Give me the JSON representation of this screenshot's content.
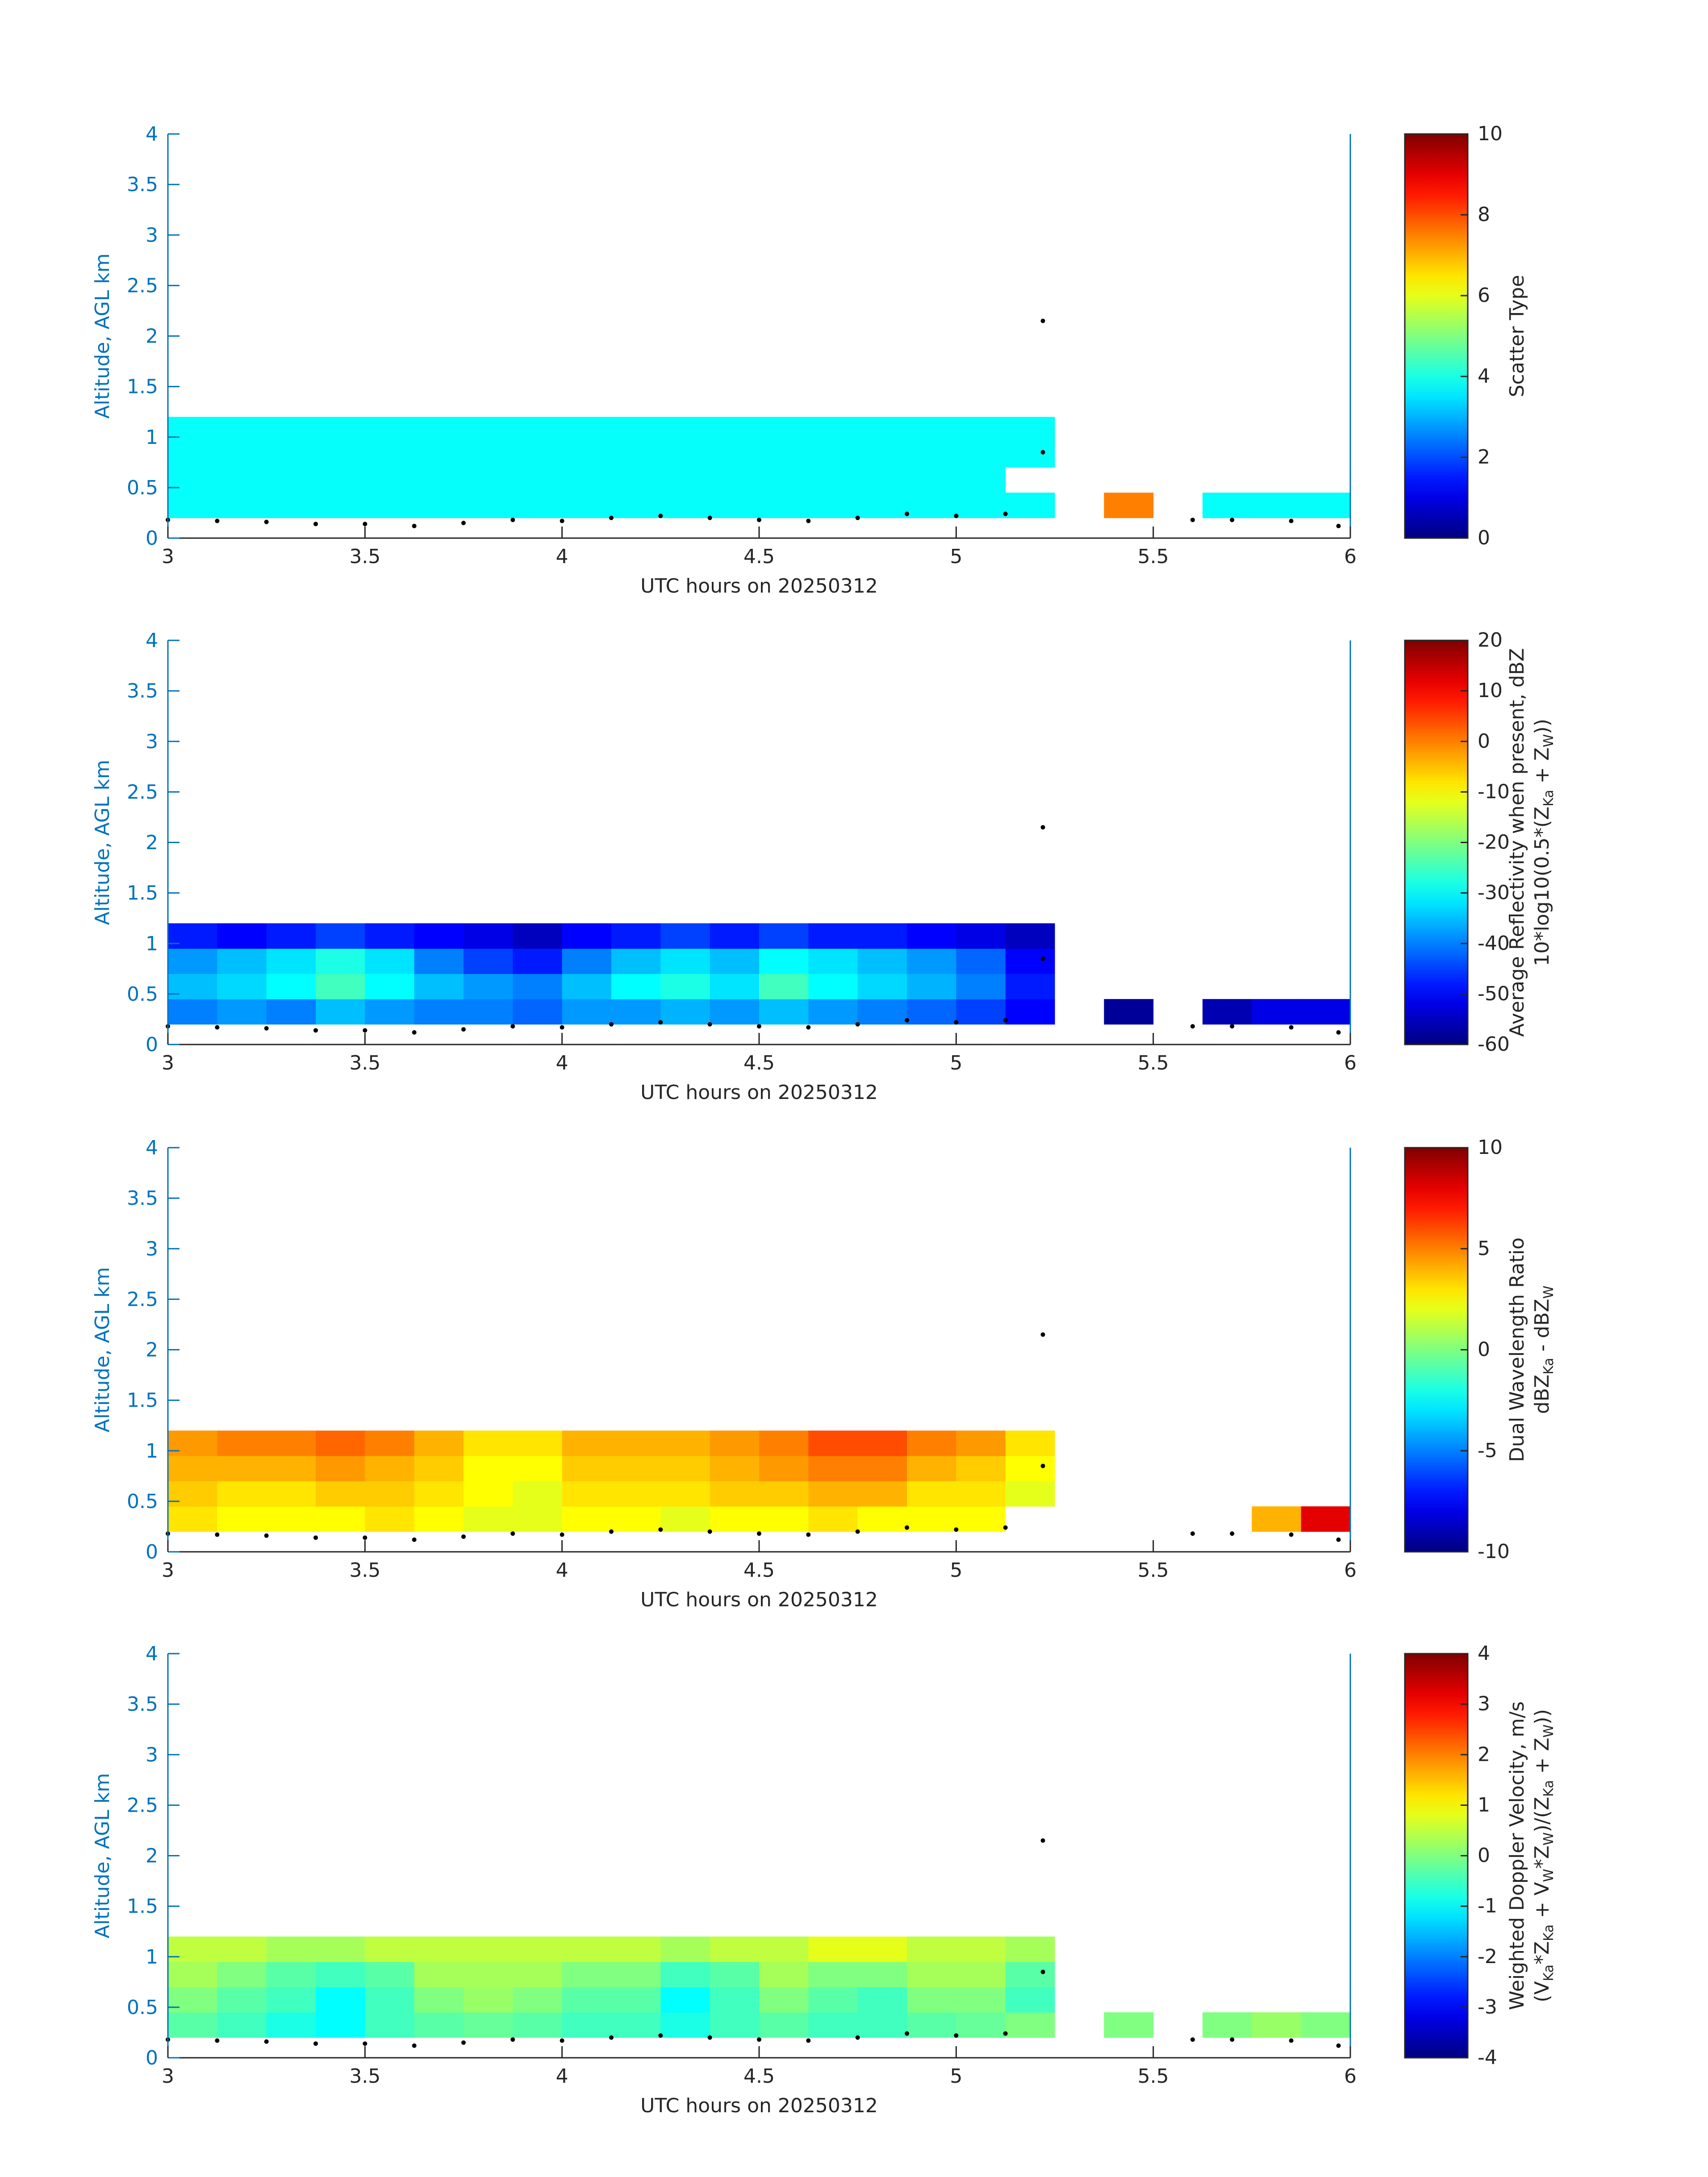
{
  "chart_data": [
    {
      "type": "heatmap",
      "xlabel": "UTC hours on 20250312",
      "ylabel": "Altitude, AGL km",
      "xlim": [
        3,
        6
      ],
      "xticks": [
        3,
        3.5,
        4,
        4.5,
        5,
        5.5,
        6
      ],
      "ylim": [
        0,
        4
      ],
      "yticks": [
        0,
        0.5,
        1,
        1.5,
        2,
        2.5,
        3,
        3.5,
        4
      ],
      "xbins": [
        3,
        3.125,
        3.25,
        3.375,
        3.5,
        3.625,
        3.75,
        3.875,
        4,
        4.125,
        4.25,
        4.375,
        4.5,
        4.625,
        4.75,
        4.875,
        5,
        5.125,
        5.25,
        5.375,
        5.5,
        5.625,
        5.75,
        5.875,
        6
      ],
      "ybins": [
        0.2,
        0.45,
        0.7,
        0.95,
        1.2
      ],
      "values": [
        [
          3.8,
          3.8,
          3.8,
          3.8,
          3.8,
          3.8,
          3.8,
          3.8,
          3.8,
          3.8,
          3.8,
          3.8,
          3.8,
          3.8,
          3.8,
          3.8,
          3.8,
          3.8,
          null,
          7.5,
          null,
          3.8,
          3.8,
          3.8
        ],
        [
          3.8,
          3.8,
          3.8,
          3.8,
          3.8,
          3.8,
          3.8,
          3.8,
          3.8,
          3.8,
          3.8,
          3.8,
          3.8,
          3.8,
          3.8,
          3.8,
          3.8,
          null,
          null,
          null,
          null,
          null,
          null,
          null
        ],
        [
          3.8,
          3.8,
          3.8,
          3.8,
          3.8,
          3.8,
          3.8,
          3.8,
          3.8,
          3.8,
          3.8,
          3.8,
          3.8,
          3.8,
          3.8,
          3.8,
          3.8,
          3.8,
          null,
          null,
          null,
          null,
          null,
          null
        ],
        [
          3.8,
          3.8,
          3.8,
          3.8,
          3.8,
          3.8,
          3.8,
          3.8,
          3.8,
          3.8,
          3.8,
          3.8,
          3.8,
          3.8,
          3.8,
          3.8,
          3.8,
          3.8,
          null,
          null,
          null,
          null,
          null,
          null
        ]
      ],
      "colormap": "jet",
      "clim": [
        0,
        10
      ],
      "cticks": [
        0,
        2,
        4,
        6,
        8,
        10
      ],
      "colorbar_label": [
        [
          {
            "text": "Scatter Type"
          }
        ]
      ],
      "points": {
        "color": "#000000",
        "x": [
          3,
          3.125,
          3.25,
          3.375,
          3.5,
          3.625,
          3.75,
          3.875,
          4,
          4.125,
          4.25,
          4.375,
          4.5,
          4.625,
          4.75,
          4.875,
          5,
          5.125,
          5.22,
          5.22,
          5.6,
          5.7,
          5.85,
          5.97
        ],
        "y": [
          0.18,
          0.17,
          0.16,
          0.14,
          0.14,
          0.12,
          0.15,
          0.18,
          0.17,
          0.2,
          0.22,
          0.2,
          0.18,
          0.17,
          0.2,
          0.24,
          0.22,
          0.24,
          0.85,
          2.15,
          0.18,
          0.18,
          0.17,
          0.12
        ]
      }
    },
    {
      "type": "heatmap",
      "xlabel": "UTC hours on 20250312",
      "ylabel": "Altitude, AGL km",
      "xlim": [
        3,
        6
      ],
      "xticks": [
        3,
        3.5,
        4,
        4.5,
        5,
        5.5,
        6
      ],
      "ylim": [
        0,
        4
      ],
      "yticks": [
        0,
        0.5,
        1,
        1.5,
        2,
        2.5,
        3,
        3.5,
        4
      ],
      "xbins": [
        3,
        3.125,
        3.25,
        3.375,
        3.5,
        3.625,
        3.75,
        3.875,
        4,
        4.125,
        4.25,
        4.375,
        4.5,
        4.625,
        4.75,
        4.875,
        5,
        5.125,
        5.25,
        5.375,
        5.5,
        5.625,
        5.75,
        5.875,
        6
      ],
      "ybins": [
        0.2,
        0.45,
        0.7,
        0.95,
        1.2
      ],
      "values": [
        [
          -40,
          -38,
          -40,
          -35,
          -38,
          -40,
          -40,
          -42,
          -38,
          -38,
          -36,
          -38,
          -35,
          -38,
          -40,
          -42,
          -45,
          -50,
          null,
          -58,
          null,
          -56,
          -52,
          -52
        ],
        [
          -35,
          -33,
          -30,
          -25,
          -30,
          -35,
          -38,
          -40,
          -35,
          -30,
          -28,
          -32,
          -25,
          -30,
          -33,
          -36,
          -40,
          -48,
          null,
          null,
          null,
          null,
          null,
          null
        ],
        [
          -38,
          -35,
          -32,
          -28,
          -32,
          -40,
          -45,
          -48,
          -40,
          -35,
          -32,
          -35,
          -30,
          -32,
          -35,
          -38,
          -42,
          -50,
          null,
          null,
          null,
          null,
          null,
          null
        ],
        [
          -48,
          -50,
          -48,
          -45,
          -48,
          -50,
          -52,
          -55,
          -50,
          -48,
          -45,
          -48,
          -45,
          -48,
          -48,
          -50,
          -52,
          -55,
          null,
          null,
          null,
          null,
          null,
          null
        ]
      ],
      "colormap": "jet",
      "clim": [
        -60,
        20
      ],
      "cticks": [
        -60,
        -50,
        -40,
        -30,
        -20,
        -10,
        0,
        10,
        20
      ],
      "colorbar_label": [
        [
          {
            "text": "Average Reflectivity when present, dBZ"
          }
        ],
        [
          {
            "text": "10*log10(0.5*(Z"
          },
          {
            "text": "Ka",
            "sub": true
          },
          {
            "text": " + Z"
          },
          {
            "text": "W",
            "sub": true
          },
          {
            "text": "))"
          }
        ]
      ],
      "points": {
        "color": "#000000",
        "x": [
          3,
          3.125,
          3.25,
          3.375,
          3.5,
          3.625,
          3.75,
          3.875,
          4,
          4.125,
          4.25,
          4.375,
          4.5,
          4.625,
          4.75,
          4.875,
          5,
          5.125,
          5.22,
          5.22,
          5.6,
          5.7,
          5.85,
          5.97
        ],
        "y": [
          0.18,
          0.17,
          0.16,
          0.14,
          0.14,
          0.12,
          0.15,
          0.18,
          0.17,
          0.2,
          0.22,
          0.2,
          0.18,
          0.17,
          0.2,
          0.24,
          0.22,
          0.24,
          0.85,
          2.15,
          0.18,
          0.18,
          0.17,
          0.12
        ]
      }
    },
    {
      "type": "heatmap",
      "xlabel": "UTC hours on 20250312",
      "ylabel": "Altitude, AGL km",
      "xlim": [
        3,
        6
      ],
      "xticks": [
        3,
        3.5,
        4,
        4.5,
        5,
        5.5,
        6
      ],
      "ylim": [
        0,
        4
      ],
      "yticks": [
        0,
        0.5,
        1,
        1.5,
        2,
        2.5,
        3,
        3.5,
        4
      ],
      "xbins": [
        3,
        3.125,
        3.25,
        3.375,
        3.5,
        3.625,
        3.75,
        3.875,
        4,
        4.125,
        4.25,
        4.375,
        4.5,
        4.625,
        4.75,
        4.875,
        5,
        5.125,
        5.25,
        5.375,
        5.5,
        5.625,
        5.75,
        5.875,
        6
      ],
      "ybins": [
        0.2,
        0.45,
        0.7,
        0.95,
        1.2
      ],
      "values": [
        [
          3,
          2.5,
          2.5,
          2.5,
          3,
          2.5,
          2,
          2,
          2.5,
          2.5,
          2,
          2.5,
          2.5,
          3,
          2.5,
          2.5,
          2.5,
          null,
          null,
          null,
          null,
          null,
          4,
          8
        ],
        [
          3.5,
          3,
          3,
          3.5,
          3.5,
          3,
          2.5,
          2,
          3,
          3,
          3,
          3.5,
          3.5,
          4,
          4,
          3,
          3,
          2,
          null,
          null,
          null,
          null,
          null,
          null
        ],
        [
          4,
          4,
          4,
          4.5,
          4,
          3.5,
          2.5,
          2.5,
          3.5,
          3.5,
          3.5,
          4,
          4.5,
          5,
          5,
          4,
          3.5,
          2.5,
          null,
          null,
          null,
          null,
          null,
          null
        ],
        [
          4.5,
          5,
          5,
          5.5,
          5,
          4,
          3,
          3,
          4,
          4,
          4,
          4.5,
          5,
          6,
          6,
          5,
          4.5,
          3,
          null,
          null,
          null,
          null,
          null,
          null
        ]
      ],
      "colormap": "jet",
      "clim": [
        -10,
        10
      ],
      "cticks": [
        -10,
        -5,
        0,
        5,
        10
      ],
      "colorbar_label": [
        [
          {
            "text": "Dual Wavelength Ratio"
          }
        ],
        [
          {
            "text": "dBZ"
          },
          {
            "text": "Ka",
            "sub": true
          },
          {
            "text": " - dBZ"
          },
          {
            "text": "W",
            "sub": true
          }
        ]
      ],
      "points": {
        "color": "#000000",
        "x": [
          3,
          3.125,
          3.25,
          3.375,
          3.5,
          3.625,
          3.75,
          3.875,
          4,
          4.125,
          4.25,
          4.375,
          4.5,
          4.625,
          4.75,
          4.875,
          5,
          5.125,
          5.22,
          5.22,
          5.6,
          5.7,
          5.85,
          5.97
        ],
        "y": [
          0.18,
          0.17,
          0.16,
          0.14,
          0.14,
          0.12,
          0.15,
          0.18,
          0.17,
          0.2,
          0.22,
          0.2,
          0.18,
          0.17,
          0.2,
          0.24,
          0.22,
          0.24,
          0.85,
          2.15,
          0.18,
          0.18,
          0.17,
          0.12
        ]
      }
    },
    {
      "type": "heatmap",
      "xlabel": "UTC hours on 20250312",
      "ylabel": "Altitude, AGL km",
      "xlim": [
        3,
        6
      ],
      "xticks": [
        3,
        3.5,
        4,
        4.5,
        5,
        5.5,
        6
      ],
      "ylim": [
        0,
        4
      ],
      "yticks": [
        0,
        0.5,
        1,
        1.5,
        2,
        2.5,
        3,
        3.5,
        4
      ],
      "xbins": [
        3,
        3.125,
        3.25,
        3.375,
        3.5,
        3.625,
        3.75,
        3.875,
        4,
        4.125,
        4.25,
        4.375,
        4.5,
        4.625,
        4.75,
        4.875,
        5,
        5.125,
        5.25,
        5.375,
        5.5,
        5.625,
        5.75,
        5.875,
        6
      ],
      "ybins": [
        0.2,
        0.45,
        0.7,
        0.95,
        1.2
      ],
      "values": [
        [
          -0.3,
          -0.5,
          -0.8,
          -1,
          -0.5,
          -0.3,
          -0.2,
          -0.3,
          -0.5,
          -0.5,
          -0.8,
          -0.5,
          -0.3,
          -0.5,
          -0.5,
          -0.3,
          -0.2,
          0,
          null,
          0,
          null,
          0,
          0.2,
          0
        ],
        [
          0,
          -0.3,
          -0.5,
          -1,
          -0.5,
          0,
          0.2,
          0,
          -0.3,
          -0.3,
          -1,
          -0.5,
          0,
          -0.3,
          -0.5,
          0,
          0,
          -0.5,
          null,
          null,
          null,
          null,
          null,
          null
        ],
        [
          0.3,
          0,
          -0.3,
          -0.5,
          -0.3,
          0.3,
          0.3,
          0.3,
          0,
          0,
          -0.5,
          -0.3,
          0.3,
          0,
          0,
          0.3,
          0.3,
          -0.3,
          null,
          null,
          null,
          null,
          null,
          null
        ],
        [
          0.5,
          0.5,
          0.3,
          0.3,
          0.5,
          0.5,
          0.5,
          0.5,
          0.5,
          0.5,
          0.3,
          0.5,
          0.5,
          0.8,
          0.8,
          0.5,
          0.5,
          0.3,
          null,
          null,
          null,
          null,
          null,
          null
        ]
      ],
      "colormap": "jet",
      "clim": [
        -4,
        4
      ],
      "cticks": [
        -4,
        -3,
        -2,
        -1,
        0,
        1,
        2,
        3,
        4
      ],
      "colorbar_label": [
        [
          {
            "text": "Weighted Doppler Velocity, m/s"
          }
        ],
        [
          {
            "text": "(V"
          },
          {
            "text": "Ka",
            "sub": true
          },
          {
            "text": "*Z"
          },
          {
            "text": "Ka",
            "sub": true
          },
          {
            "text": " + V"
          },
          {
            "text": "W",
            "sub": true
          },
          {
            "text": "*Z"
          },
          {
            "text": "W",
            "sub": true
          },
          {
            "text": ")/(Z"
          },
          {
            "text": "Ka",
            "sub": true
          },
          {
            "text": " + Z"
          },
          {
            "text": "W",
            "sub": true
          },
          {
            "text": "))"
          }
        ]
      ],
      "points": {
        "color": "#000000",
        "x": [
          3,
          3.125,
          3.25,
          3.375,
          3.5,
          3.625,
          3.75,
          3.875,
          4,
          4.125,
          4.25,
          4.375,
          4.5,
          4.625,
          4.75,
          4.875,
          5,
          5.125,
          5.22,
          5.22,
          5.6,
          5.7,
          5.85,
          5.97
        ],
        "y": [
          0.18,
          0.17,
          0.16,
          0.14,
          0.14,
          0.12,
          0.15,
          0.18,
          0.17,
          0.2,
          0.22,
          0.2,
          0.18,
          0.17,
          0.2,
          0.24,
          0.22,
          0.24,
          0.85,
          2.15,
          0.18,
          0.18,
          0.17,
          0.12
        ]
      }
    }
  ]
}
